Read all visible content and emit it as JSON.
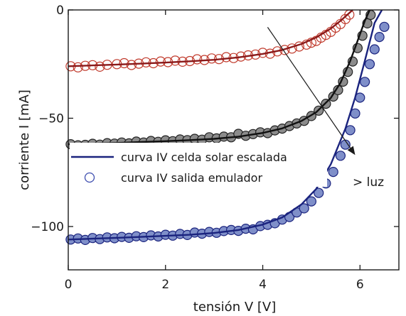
{
  "chart_data": {
    "type": "scatter",
    "xlabel": "tensión V [V]",
    "ylabel": "corriente I [mA]",
    "xlim": [
      0,
      6.8
    ],
    "ylim": [
      -120,
      0
    ],
    "x_ticks": [
      0,
      2,
      4,
      6
    ],
    "y_ticks": [
      0,
      -50,
      -100
    ],
    "grid": false,
    "legend_placement": "center-left",
    "legend": [
      {
        "label": "curva IV celda solar escalada",
        "kind": "line",
        "color": "#1a237e"
      },
      {
        "label": "curva IV salida emulador",
        "kind": "marker",
        "color": "#3f4fb0"
      }
    ],
    "annotation": {
      "text": "> luz",
      "arrow_from": [
        4.1,
        -8
      ],
      "arrow_to": [
        5.9,
        -67
      ]
    },
    "series": [
      {
        "id": "low-light",
        "line_color": "#8b1a1a",
        "marker_edge": "#c0392b",
        "marker_fill": "none",
        "curve": {
          "x": [
            0,
            0.5,
            1,
            1.5,
            2,
            2.5,
            3,
            3.5,
            4,
            4.4,
            4.8,
            5.1,
            5.4,
            5.6,
            5.75,
            5.85
          ],
          "y": [
            -26,
            -25.6,
            -25.2,
            -24.8,
            -24.3,
            -23.7,
            -23,
            -21.9,
            -20.3,
            -18.5,
            -15.7,
            -12.7,
            -8.6,
            -5,
            -2,
            0
          ]
        },
        "points": {
          "x": [
            0.05,
            0.2,
            0.35,
            0.5,
            0.65,
            0.8,
            1.0,
            1.15,
            1.3,
            1.45,
            1.6,
            1.75,
            1.9,
            2.05,
            2.2,
            2.35,
            2.5,
            2.65,
            2.8,
            2.95,
            3.1,
            3.25,
            3.4,
            3.55,
            3.7,
            3.85,
            4.0,
            4.15,
            4.3,
            4.45,
            4.6,
            4.75,
            4.9,
            5.0,
            5.1,
            5.2,
            5.3,
            5.4,
            5.5,
            5.6,
            5.7,
            5.78
          ],
          "y": [
            -26,
            -26.5,
            -25.8,
            -25.5,
            -26.2,
            -25.3,
            -25,
            -24.6,
            -25.4,
            -24.8,
            -24.2,
            -24.6,
            -23.8,
            -24.1,
            -23.4,
            -23.9,
            -23.6,
            -22.8,
            -23.1,
            -22.4,
            -22.7,
            -21.8,
            -22.2,
            -21.5,
            -21,
            -20.6,
            -19.8,
            -20.2,
            -19.1,
            -18.5,
            -17.8,
            -16.9,
            -16,
            -15.1,
            -14.3,
            -12.8,
            -11.5,
            -10.1,
            -8.2,
            -6.5,
            -4.2,
            -2.2
          ]
        }
      },
      {
        "id": "mid-light",
        "line_color": "#111111",
        "marker_edge": "#222222",
        "marker_fill": "#8c8c8c",
        "curve": {
          "x": [
            0,
            0.5,
            1,
            1.5,
            2,
            2.5,
            3,
            3.5,
            4,
            4.4,
            4.8,
            5.1,
            5.4,
            5.6,
            5.8,
            5.95,
            6.1,
            6.2
          ],
          "y": [
            -62,
            -61.7,
            -61.4,
            -61,
            -60.6,
            -60.1,
            -59.5,
            -58.5,
            -56.8,
            -54.7,
            -51.2,
            -47.2,
            -40.6,
            -33.6,
            -23.5,
            -14.3,
            -5,
            0
          ]
        },
        "points": {
          "x": [
            0.05,
            0.2,
            0.35,
            0.5,
            0.65,
            0.8,
            0.95,
            1.1,
            1.25,
            1.4,
            1.55,
            1.7,
            1.85,
            2.0,
            2.15,
            2.3,
            2.45,
            2.6,
            2.75,
            2.9,
            3.05,
            3.2,
            3.35,
            3.5,
            3.65,
            3.8,
            3.95,
            4.1,
            4.25,
            4.4,
            4.55,
            4.7,
            4.85,
            5.0,
            5.15,
            5.3,
            5.45,
            5.55,
            5.65,
            5.75,
            5.85,
            5.95,
            6.05,
            6.15,
            6.22
          ],
          "y": [
            -62,
            -62.5,
            -62.3,
            -61.8,
            -62.2,
            -61.5,
            -61.7,
            -61.2,
            -61.6,
            -60.8,
            -61.2,
            -60.5,
            -60.9,
            -60.2,
            -60.6,
            -59.8,
            -60.1,
            -59.5,
            -59.9,
            -58.8,
            -59.3,
            -58.5,
            -58.8,
            -57.2,
            -58.1,
            -57.3,
            -56.5,
            -56.9,
            -55.6,
            -54.8,
            -53.6,
            -52.4,
            -51.2,
            -49,
            -46.5,
            -43.3,
            -40,
            -37,
            -33.1,
            -28.6,
            -23.8,
            -17.6,
            -11.9,
            -6.2,
            -2.3
          ]
        }
      },
      {
        "id": "high-light",
        "line_color": "#1a237e",
        "marker_edge": "#1a237e",
        "marker_fill": "#7f8fc9",
        "curve": {
          "x": [
            0,
            0.5,
            1,
            1.5,
            2,
            2.5,
            3,
            3.5,
            4,
            4.4,
            4.8,
            5.1,
            5.4,
            5.7,
            5.9,
            6.1,
            6.3,
            6.45
          ],
          "y": [
            -106,
            -105.6,
            -105.2,
            -104.8,
            -104.3,
            -103.8,
            -103,
            -101.6,
            -99.1,
            -95.8,
            -89.7,
            -82.6,
            -71.2,
            -54.8,
            -40.4,
            -23.5,
            -6,
            0
          ]
        },
        "points": {
          "x": [
            0.05,
            0.2,
            0.35,
            0.5,
            0.65,
            0.8,
            0.95,
            1.1,
            1.25,
            1.4,
            1.55,
            1.7,
            1.85,
            2.0,
            2.15,
            2.3,
            2.45,
            2.6,
            2.75,
            2.9,
            3.05,
            3.2,
            3.35,
            3.5,
            3.65,
            3.8,
            3.95,
            4.1,
            4.25,
            4.4,
            4.55,
            4.7,
            4.85,
            5.0,
            5.15,
            5.3,
            5.45,
            5.6,
            5.7,
            5.8,
            5.9,
            6.0,
            6.1,
            6.2,
            6.3,
            6.4,
            6.5
          ],
          "y": [
            -106,
            -105.5,
            -106.2,
            -105.3,
            -105.8,
            -105,
            -105.4,
            -104.8,
            -105.2,
            -104.5,
            -104.9,
            -104.1,
            -104.6,
            -103.8,
            -104.2,
            -103.4,
            -103.9,
            -102.8,
            -103.3,
            -102.5,
            -102.9,
            -102.1,
            -101.6,
            -102,
            -101,
            -101.3,
            -99.8,
            -99.2,
            -98.5,
            -96.8,
            -95.6,
            -93.5,
            -91.6,
            -88.4,
            -84.5,
            -80.1,
            -74.8,
            -67.3,
            -62.2,
            -55.5,
            -47.8,
            -40.5,
            -33.2,
            -25,
            -18.2,
            -12.5,
            -7.8
          ]
        }
      }
    ]
  }
}
